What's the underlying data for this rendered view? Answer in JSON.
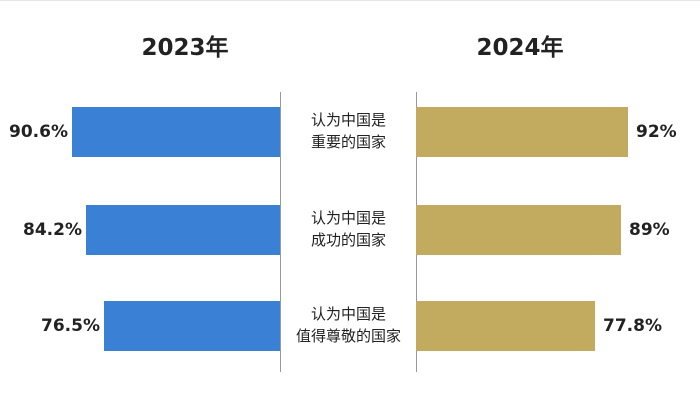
{
  "colors": {
    "left_bar": "#3a80d4",
    "right_bar": "#c2aa5e"
  },
  "chart_data": {
    "type": "bar",
    "orientation": "horizontal-butterfly",
    "series": [
      {
        "name": "2023年",
        "values": [
          90.6,
          84.2,
          76.5
        ],
        "labels": [
          "90.6%",
          "84.2%",
          "76.5%"
        ]
      },
      {
        "name": "2024年",
        "values": [
          92,
          89,
          77.8
        ],
        "labels": [
          "92%",
          "89%",
          "77.8%"
        ]
      }
    ],
    "categories": [
      {
        "line1": "认为中国是",
        "line2": "重要的国家"
      },
      {
        "line1": "认为中国是",
        "line2": "成功的国家"
      },
      {
        "line1": "认为中国是",
        "line2": "值得尊敬的国家"
      }
    ],
    "xlim": [
      0,
      100
    ],
    "grid": false
  }
}
